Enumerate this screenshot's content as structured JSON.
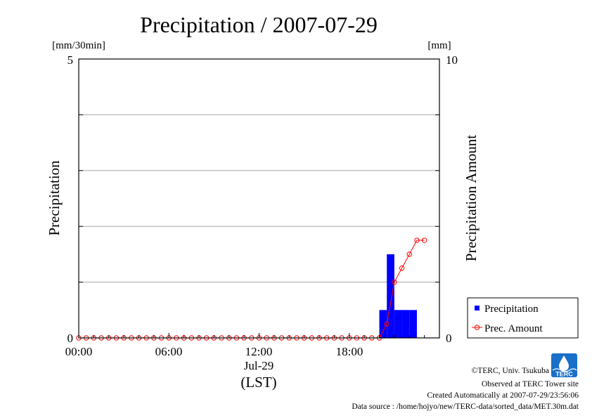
{
  "chart_data": {
    "type": "bar",
    "title": "Precipitation / 2007-07-29",
    "ylabel": "Precipitation",
    "y2label": "Precipitation Amount",
    "yunit": "[mm/30min]",
    "y2unit": "[mm]",
    "ylim": [
      0,
      5
    ],
    "y2lim": [
      0,
      10
    ],
    "y_ticks": [
      "0",
      "5"
    ],
    "y2_ticks": [
      "0",
      "10"
    ],
    "xlim": [
      0,
      24
    ],
    "x_ticks": [
      "00:00",
      "06:00",
      "12:00",
      "18:00"
    ],
    "x_sublabel": "Jul-29",
    "x_caption": "(LST)",
    "grid": true,
    "legend_position": "bottom-right",
    "series": [
      {
        "name": "Precipitation",
        "type": "bar",
        "color": "#0000ff",
        "x": [
          20.0,
          20.5,
          21.0,
          21.5,
          22.0
        ],
        "values": [
          0.5,
          1.5,
          0.5,
          0.5,
          0.5
        ]
      },
      {
        "name": "Prec. Amount",
        "type": "line",
        "color": "#ff0000",
        "x": [
          0.0,
          0.5,
          1.0,
          1.5,
          2.0,
          2.5,
          3.0,
          3.5,
          4.0,
          4.5,
          5.0,
          5.5,
          6.0,
          6.5,
          7.0,
          7.5,
          8.0,
          8.5,
          9.0,
          9.5,
          10.0,
          10.5,
          11.0,
          11.5,
          12.0,
          12.5,
          13.0,
          13.5,
          14.0,
          14.5,
          15.0,
          15.5,
          16.0,
          16.5,
          17.0,
          17.5,
          18.0,
          18.5,
          19.0,
          19.5,
          20.0,
          20.5,
          21.0,
          21.5,
          22.0,
          22.5,
          23.0
        ],
        "values": [
          0,
          0,
          0,
          0,
          0,
          0,
          0,
          0,
          0,
          0,
          0,
          0,
          0,
          0,
          0,
          0,
          0,
          0,
          0,
          0,
          0,
          0,
          0,
          0,
          0,
          0,
          0,
          0,
          0,
          0,
          0,
          0,
          0,
          0,
          0,
          0,
          0,
          0,
          0,
          0,
          0,
          0.5,
          2.0,
          2.5,
          3.0,
          3.5,
          3.5
        ]
      }
    ]
  },
  "footer": {
    "copyright": "©TERC, Univ. Tsukuba",
    "observed": "Observed at TERC Tower site",
    "created": "Created Automatically at 2007-07-29/23:56:06",
    "source": "Data source : /home/hojyo/new/TERC-data/sorted_data/MET.30m.dat",
    "logo_text": "TERC"
  }
}
